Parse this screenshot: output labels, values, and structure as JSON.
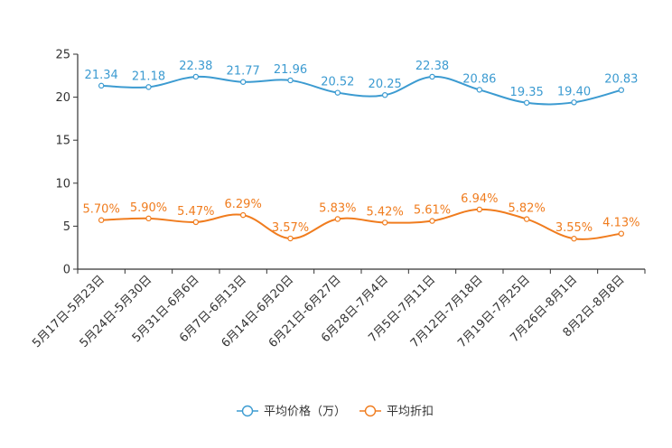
{
  "chart_data": {
    "type": "line",
    "title": "",
    "xlabel": "",
    "ylabel": "",
    "ylim": [
      0,
      25
    ],
    "yticks": [
      0,
      5,
      10,
      15,
      20,
      25
    ],
    "grid": false,
    "legend_position": "bottom-center",
    "categories": [
      "5月17日-5月23日",
      "5月24日-5月30日",
      "5月31日-6月6日",
      "6月7日-6月13日",
      "6月14日-6月20日",
      "6月21日-6月27日",
      "6月28日-7月4日",
      "7月5日-7月11日",
      "7月12日-7月18日",
      "7月19日-7月25日",
      "7月26日-8月1日",
      "8月2日-8月8日"
    ],
    "series": [
      {
        "name": "平均价格（万）",
        "color": "#3c9bd1",
        "values": [
          21.34,
          21.18,
          22.38,
          21.77,
          21.96,
          20.52,
          20.25,
          22.38,
          20.86,
          19.35,
          19.4,
          20.83
        ],
        "labels": [
          "21.34",
          "21.18",
          "22.38",
          "21.77",
          "21.96",
          "20.52",
          "20.25",
          "22.38",
          "20.86",
          "19.35",
          "19.40",
          "20.83"
        ]
      },
      {
        "name": "平均折扣",
        "color": "#f07c1e",
        "values": [
          5.7,
          5.9,
          5.47,
          6.29,
          3.57,
          5.83,
          5.42,
          5.61,
          6.94,
          5.82,
          3.55,
          4.13
        ],
        "labels": [
          "5.70%",
          "5.90%",
          "5.47%",
          "6.29%",
          "3.57%",
          "5.83%",
          "5.42%",
          "5.61%",
          "6.94%",
          "5.82%",
          "3.55%",
          "4.13%"
        ]
      }
    ]
  }
}
